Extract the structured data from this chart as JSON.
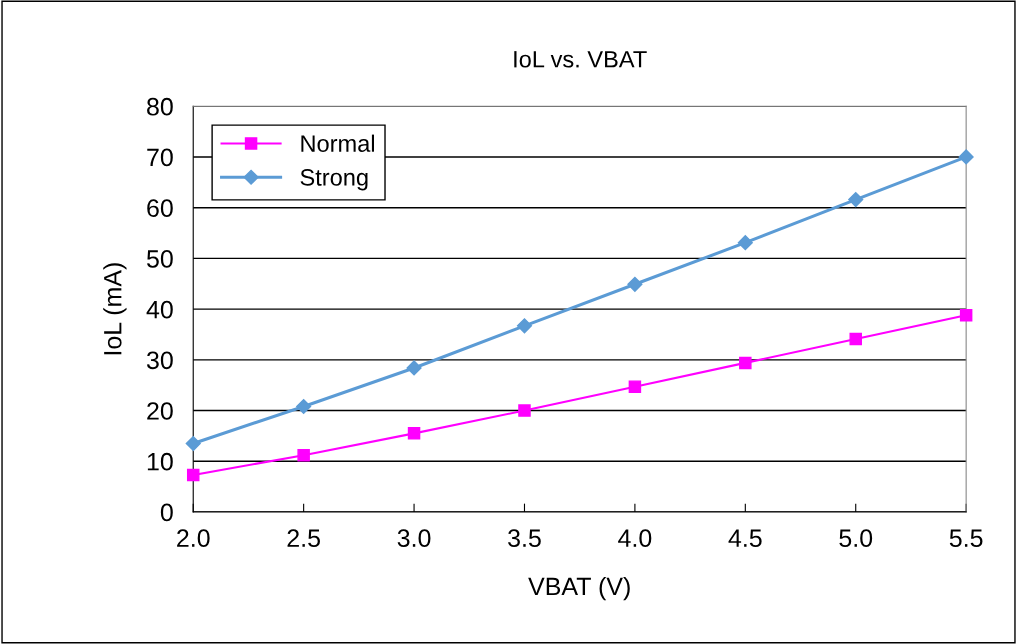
{
  "chart_data": {
    "type": "line",
    "title": "IoL vs. VBAT",
    "xlabel": "VBAT (V)",
    "ylabel": "IoL (mA)",
    "x": [
      2.0,
      2.5,
      3.0,
      3.5,
      4.0,
      4.5,
      5.0,
      5.5
    ],
    "series": [
      {
        "name": "Normal",
        "color": "#ff00ff",
        "marker": "square",
        "values": [
          7.3,
          11.2,
          15.5,
          20.0,
          24.7,
          29.4,
          34.1,
          38.8
        ]
      },
      {
        "name": "Strong",
        "color": "#5b9bd5",
        "marker": "diamond",
        "values": [
          13.5,
          20.8,
          28.4,
          36.7,
          44.9,
          53.1,
          61.6,
          70.0
        ]
      }
    ],
    "xlim": [
      2.0,
      5.5
    ],
    "xticks": [
      {
        "value": 2.0,
        "label": "2.0"
      },
      {
        "value": 2.5,
        "label": "2.5"
      },
      {
        "value": 3.0,
        "label": "3.0"
      },
      {
        "value": 3.5,
        "label": "3.5"
      },
      {
        "value": 4.0,
        "label": "4.0"
      },
      {
        "value": 4.5,
        "label": "4.5"
      },
      {
        "value": 5.0,
        "label": "5.0"
      },
      {
        "value": 5.5,
        "label": "5.5"
      }
    ],
    "ylim": [
      0,
      80
    ],
    "yticks": [
      0,
      10,
      20,
      30,
      40,
      50,
      60,
      70,
      80
    ],
    "grid": "y",
    "legend": "top left",
    "line_style": "solid"
  }
}
